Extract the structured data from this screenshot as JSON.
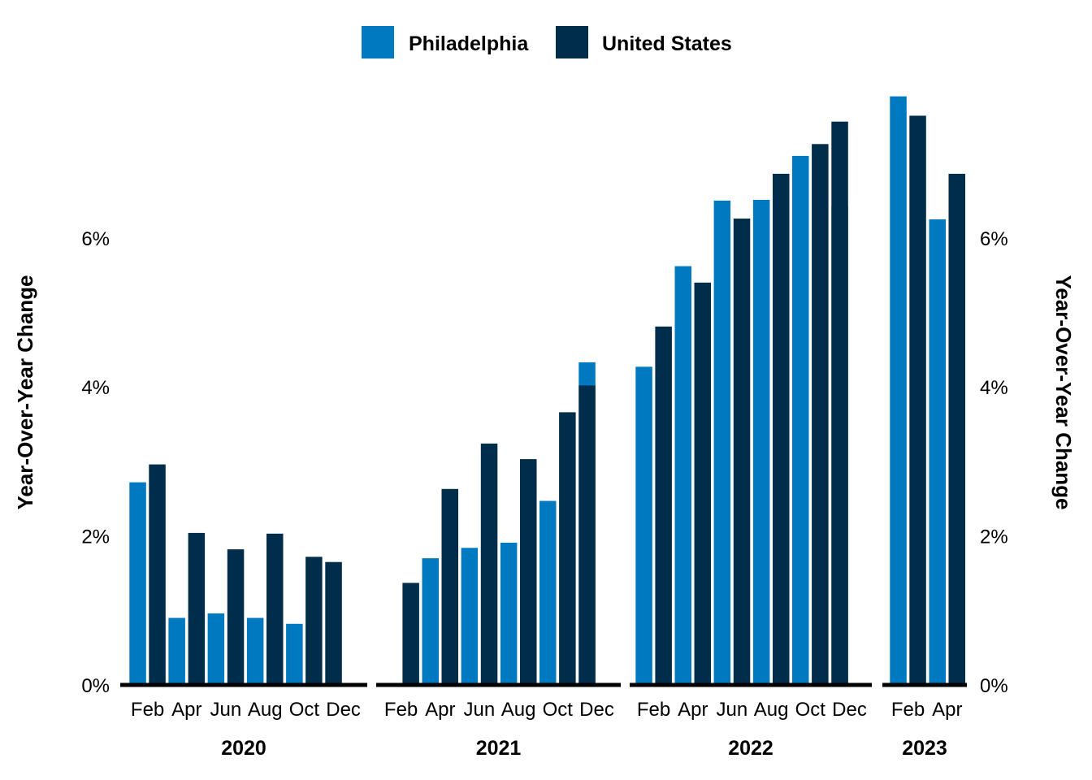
{
  "chart_data": {
    "type": "bar",
    "ylabel_left": "Year-Over-Year Change",
    "ylabel_right": "Year-Over-Year Change",
    "ylim": [
      0,
      8.0
    ],
    "yticks": [
      "0%",
      "2%",
      "4%",
      "6%"
    ],
    "ytick_values": [
      0,
      2,
      4,
      6
    ],
    "grid": false,
    "legend_position": "top-center",
    "colors": {
      "Philadelphia": "#0079c1",
      "United States": "#002d4a"
    },
    "groups": [
      {
        "year": "2020",
        "categories": [
          "Feb",
          "Mar",
          "Apr",
          "May",
          "Jun",
          "Jul",
          "Aug",
          "Sep",
          "Oct",
          "Nov",
          "Dec"
        ],
        "month_labels": [
          "Feb",
          "Apr",
          "Jun",
          "Aug",
          "Oct",
          "Dec"
        ],
        "series": [
          {
            "name": "Philadelphia",
            "values": [
              2.72,
              null,
              0.9,
              null,
              0.96,
              null,
              0.9,
              null,
              0.82,
              null,
              null
            ]
          },
          {
            "name": "United States",
            "values": [
              null,
              2.96,
              null,
              2.04,
              null,
              1.82,
              null,
              2.03,
              null,
              1.72,
              1.65
            ]
          }
        ]
      },
      {
        "year": "2021",
        "categories": [
          "Feb",
          "Mar",
          "Apr",
          "May",
          "Jun",
          "Jul",
          "Aug",
          "Sep",
          "Oct",
          "Nov",
          "Dec"
        ],
        "month_labels": [
          "Feb",
          "Apr",
          "Jun",
          "Aug",
          "Oct",
          "Dec"
        ],
        "series": [
          {
            "name": "Philadelphia",
            "values": [
              null,
              null,
              1.7,
              null,
              1.84,
              null,
              1.91,
              null,
              2.47,
              null,
              4.33
            ]
          },
          {
            "name": "United States",
            "values": [
              null,
              1.37,
              null,
              2.63,
              null,
              3.24,
              null,
              3.03,
              null,
              3.66,
              4.02
            ]
          }
        ]
      },
      {
        "year": "2022",
        "categories": [
          "Feb",
          "Mar",
          "Apr",
          "May",
          "Jun",
          "Jul",
          "Aug",
          "Sep",
          "Oct",
          "Nov",
          "Dec"
        ],
        "month_labels": [
          "Feb",
          "Apr",
          "Jun",
          "Aug",
          "Oct",
          "Dec"
        ],
        "series": [
          {
            "name": "Philadelphia",
            "values": [
              4.27,
              null,
              5.62,
              null,
              6.5,
              null,
              6.51,
              null,
              7.1,
              null,
              6.43
            ]
          },
          {
            "name": "United States",
            "values": [
              null,
              4.81,
              null,
              5.4,
              null,
              6.26,
              null,
              6.86,
              null,
              7.26,
              7.56
            ]
          }
        ]
      },
      {
        "year": "2023",
        "categories": [
          "Feb",
          "Mar",
          "Apr",
          "May"
        ],
        "month_labels": [
          "Feb",
          "Apr"
        ],
        "series": [
          {
            "name": "Philadelphia",
            "values": [
              7.9,
              null,
              6.25,
              null
            ]
          },
          {
            "name": "United States",
            "values": [
              null,
              7.64,
              null,
              6.86
            ]
          }
        ]
      }
    ]
  },
  "legend": {
    "items": [
      {
        "label": "Philadelphia",
        "color": "#0079c1"
      },
      {
        "label": "United States",
        "color": "#002d4a"
      }
    ]
  }
}
